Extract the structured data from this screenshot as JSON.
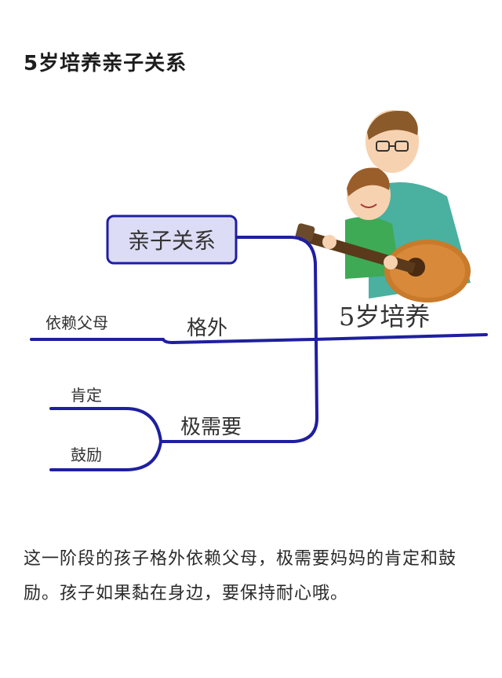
{
  "article": {
    "title": "5岁培养亲子关系",
    "body": "这一阶段的孩子格外依赖父母，极需要妈妈的肯定和鼓励。孩子如果黏在身边，要保持耐心哦。"
  },
  "mindmap": {
    "center": "5岁培养",
    "topic_box": "亲子关系",
    "branches": [
      {
        "label": "格外",
        "children": [
          "依赖父母"
        ]
      },
      {
        "label": "极需要",
        "children": [
          "肯定",
          "鼓励"
        ]
      }
    ],
    "colors": {
      "line": "#1f1fa0",
      "box_fill": "#dcdcf6",
      "box_border": "#1f1fa0"
    }
  }
}
